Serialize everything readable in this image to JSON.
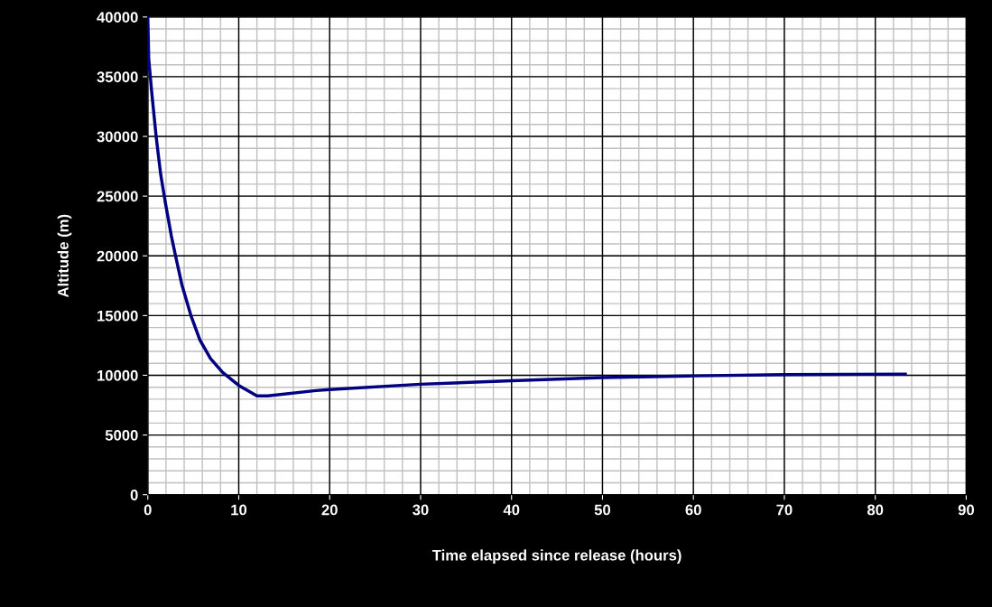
{
  "chart_data": {
    "type": "line",
    "xlabel": "Time elapsed since release (hours)",
    "ylabel": "Altitude (m)",
    "x": [
      0,
      0.1,
      0.43,
      0.93,
      1.42,
      1.92,
      2.58,
      3.08,
      3.74,
      4.74,
      5.73,
      6.89,
      8.21,
      10,
      12,
      13.2,
      18.5,
      20,
      30,
      40,
      50,
      60,
      70,
      83.3
    ],
    "series": [
      {
        "color": "#000080",
        "values": [
          40000,
          36500,
          33700,
          29900,
          26800,
          24500,
          21700,
          19900,
          17600,
          15000,
          12950,
          11400,
          10250,
          9150,
          8280,
          8280,
          8720,
          8800,
          9250,
          9550,
          9800,
          9950,
          10050,
          10100
        ]
      }
    ],
    "xlim": [
      0,
      90
    ],
    "xticks": [
      0,
      10,
      20,
      30,
      40,
      50,
      60,
      70,
      80,
      90
    ],
    "ylim": [
      0,
      40000
    ],
    "yticks": [
      0,
      5000,
      10000,
      15000,
      20000,
      25000,
      30000,
      35000,
      40000
    ],
    "grid": true,
    "marker": "none",
    "line_style": "solid"
  }
}
